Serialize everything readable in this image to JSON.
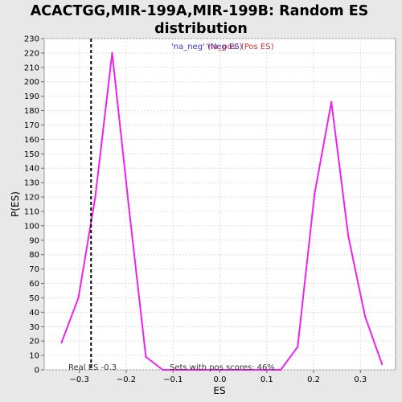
{
  "chart_data": {
    "type": "line",
    "title_lines": [
      "ACACTGG,MIR-199A,MIR-199B: Random ES",
      "distribution"
    ],
    "xlabel": "ES",
    "ylabel": "P(ES)",
    "xlim": [
      -0.375,
      0.375
    ],
    "ylim": [
      0,
      230
    ],
    "x_ticks": [
      -0.3,
      -0.2,
      -0.1,
      0.0,
      0.1,
      0.2,
      0.3
    ],
    "x_tick_labels": [
      "−0.3",
      "−0.2",
      "−0.1",
      "0.0",
      "0.1",
      "0.2",
      "0.3"
    ],
    "y_ticks": [
      0,
      10,
      20,
      30,
      40,
      50,
      60,
      70,
      80,
      90,
      100,
      110,
      120,
      130,
      140,
      150,
      160,
      170,
      180,
      190,
      200,
      210,
      220,
      230
    ],
    "grid": true,
    "legend_position": "top-center",
    "legend": [
      {
        "label": "'na_neg' (Neg ES)",
        "color": "#3333cc"
      },
      {
        "label": "'na_pos' (Pos ES)",
        "color": "#cc3333"
      }
    ],
    "series": [
      {
        "color": "#ee22ee",
        "x": [
          -0.338,
          -0.302,
          -0.266,
          -0.23,
          -0.194,
          -0.158,
          -0.122,
          -0.086,
          -0.05,
          -0.014,
          0.022,
          0.058,
          0.094,
          0.13,
          0.166,
          0.202,
          0.238,
          0.274,
          0.31,
          0.346
        ],
        "y": [
          19,
          50,
          120,
          220,
          112,
          9,
          0,
          0,
          0,
          0,
          0,
          0,
          0,
          0,
          16,
          122,
          186,
          93,
          37,
          4
        ]
      }
    ],
    "reference_line": {
      "x": -0.275,
      "style": "dashed",
      "color": "#000000"
    },
    "annotations": {
      "real_es": "Real ES -0.3",
      "pos_scores": "Sets with pos scores: 46%"
    }
  }
}
